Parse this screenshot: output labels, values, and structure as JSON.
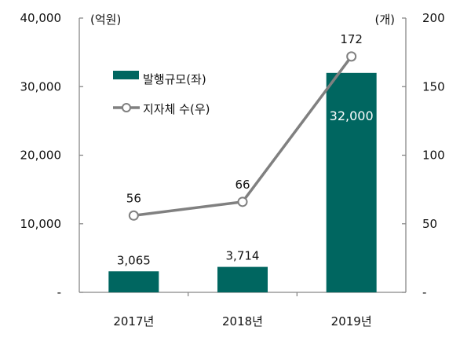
{
  "chart_data": {
    "type": "bar+line",
    "categories": [
      "2017년",
      "2018년",
      "2019년"
    ],
    "series": [
      {
        "name": "발행규모(좌)",
        "type": "bar",
        "axis": "left",
        "values": [
          3065,
          3714,
          32000
        ],
        "labels": [
          "3,065",
          "3,714",
          "32,000"
        ],
        "color": "#006660"
      },
      {
        "name": "지자체 수(우)",
        "type": "line",
        "axis": "right",
        "values": [
          56,
          66,
          172
        ],
        "labels": [
          "56",
          "66",
          "172"
        ],
        "color": "#808080"
      }
    ],
    "left_axis": {
      "unit": "(억원)",
      "ylim": [
        0,
        40000
      ],
      "ticks": [
        0,
        10000,
        20000,
        30000,
        40000
      ],
      "tick_labels": [
        "-",
        "10,000",
        "20,000",
        "30,000",
        "40,000"
      ]
    },
    "right_axis": {
      "unit": "(개)",
      "ylim": [
        0,
        200
      ],
      "ticks": [
        0,
        50,
        100,
        150,
        200
      ],
      "tick_labels": [
        "-",
        "50",
        "100",
        "150",
        "200"
      ]
    },
    "grid": false,
    "legend": "upper-left"
  }
}
